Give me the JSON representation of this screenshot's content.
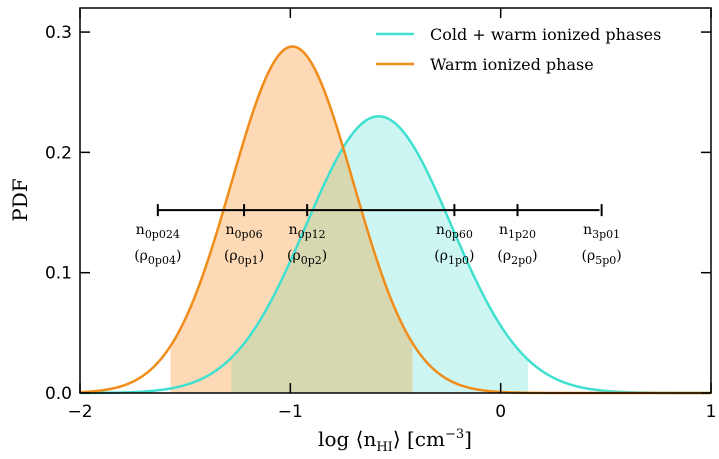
{
  "chart_data": {
    "type": "line",
    "title": "",
    "xlabel": "log ⟨n_HI⟩ [cm^-3]",
    "xlabel_parts": {
      "main": "log ⟨n",
      "sub": "HI",
      "close": "⟩ [cm",
      "sup": "−3",
      "end": "]"
    },
    "ylabel": "PDF",
    "xlim": [
      -2,
      1
    ],
    "ylim": [
      0,
      0.32
    ],
    "xticks": [
      -2,
      -1,
      0,
      1
    ],
    "xtick_labels": [
      "−2",
      "−1",
      "0",
      "1"
    ],
    "yticks": [
      0.0,
      0.1,
      0.2,
      0.3
    ],
    "ytick_labels": [
      "0.0",
      "0.1",
      "0.2",
      "0.3"
    ],
    "grid": false,
    "legend_position": "top-right",
    "series": [
      {
        "name": "Cold + warm ionized phases",
        "color": "#40e0d0",
        "fill": "#cdf5f1",
        "model": "gaussian",
        "mean": -0.58,
        "sigma": 0.345,
        "peak": 0.23,
        "shaded_range": [
          -1.28,
          0.13
        ]
      },
      {
        "name": "Warm ionized phase",
        "color": "#f08c1a",
        "fill": "#fdd9b5",
        "model": "gaussian",
        "mean": -0.99,
        "sigma": 0.29,
        "peak": 0.288,
        "shaded_range": [
          -1.57,
          -0.42
        ]
      }
    ],
    "overlap_fill": "#d8d8b0",
    "density_scale": {
      "y": 0.152,
      "x_start": -1.63,
      "x_end": 0.47,
      "markers": [
        {
          "x": -1.63,
          "n": "n",
          "n_sub": "0p024",
          "rho": "ρ",
          "rho_sub": "0p04"
        },
        {
          "x": -1.22,
          "n": "n",
          "n_sub": "0p06",
          "rho": "ρ",
          "rho_sub": "0p1"
        },
        {
          "x": -0.92,
          "n": "n",
          "n_sub": "0p12",
          "rho": "ρ",
          "rho_sub": "0p2"
        },
        {
          "x": -0.22,
          "n": "n",
          "n_sub": "0p60",
          "rho": "ρ",
          "rho_sub": "1p0"
        },
        {
          "x": 0.08,
          "n": "n",
          "n_sub": "1p20",
          "rho": "ρ",
          "rho_sub": "2p0"
        },
        {
          "x": 0.48,
          "n": "n",
          "n_sub": "3p01",
          "rho": "ρ",
          "rho_sub": "5p0"
        }
      ]
    }
  }
}
